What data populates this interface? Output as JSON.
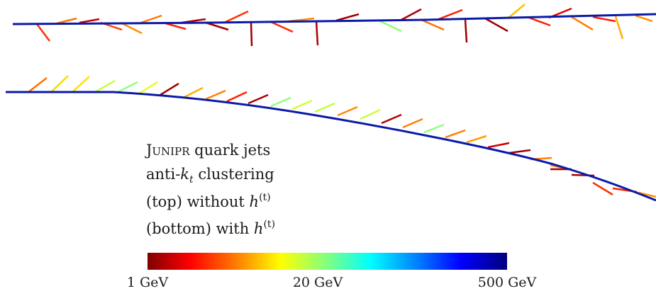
{
  "legend": {
    "line1_smallcaps": "Junipr",
    "line1_rest": " quark jets",
    "line2_pre": "anti-",
    "line2_var": "k",
    "line2_sub": "t",
    "line2_post": " clustering",
    "line3_pre": "(top) without ",
    "line4_pre": "(bottom) with ",
    "h_symbol": "h",
    "h_superscript": "(t)"
  },
  "colorbar": {
    "labels": [
      "1 GeV",
      "20 GeV",
      "500 GeV"
    ],
    "colormap": "jet (reversed: dark red to dark blue)"
  },
  "colors": {
    "branch_line": "#0a1aa8",
    "jet_stops": [
      "#800000",
      "#ff0000",
      "#ff8000",
      "#ffff00",
      "#80ff80",
      "#00ffff",
      "#0080ff",
      "#0000ff",
      "#000080"
    ]
  }
}
